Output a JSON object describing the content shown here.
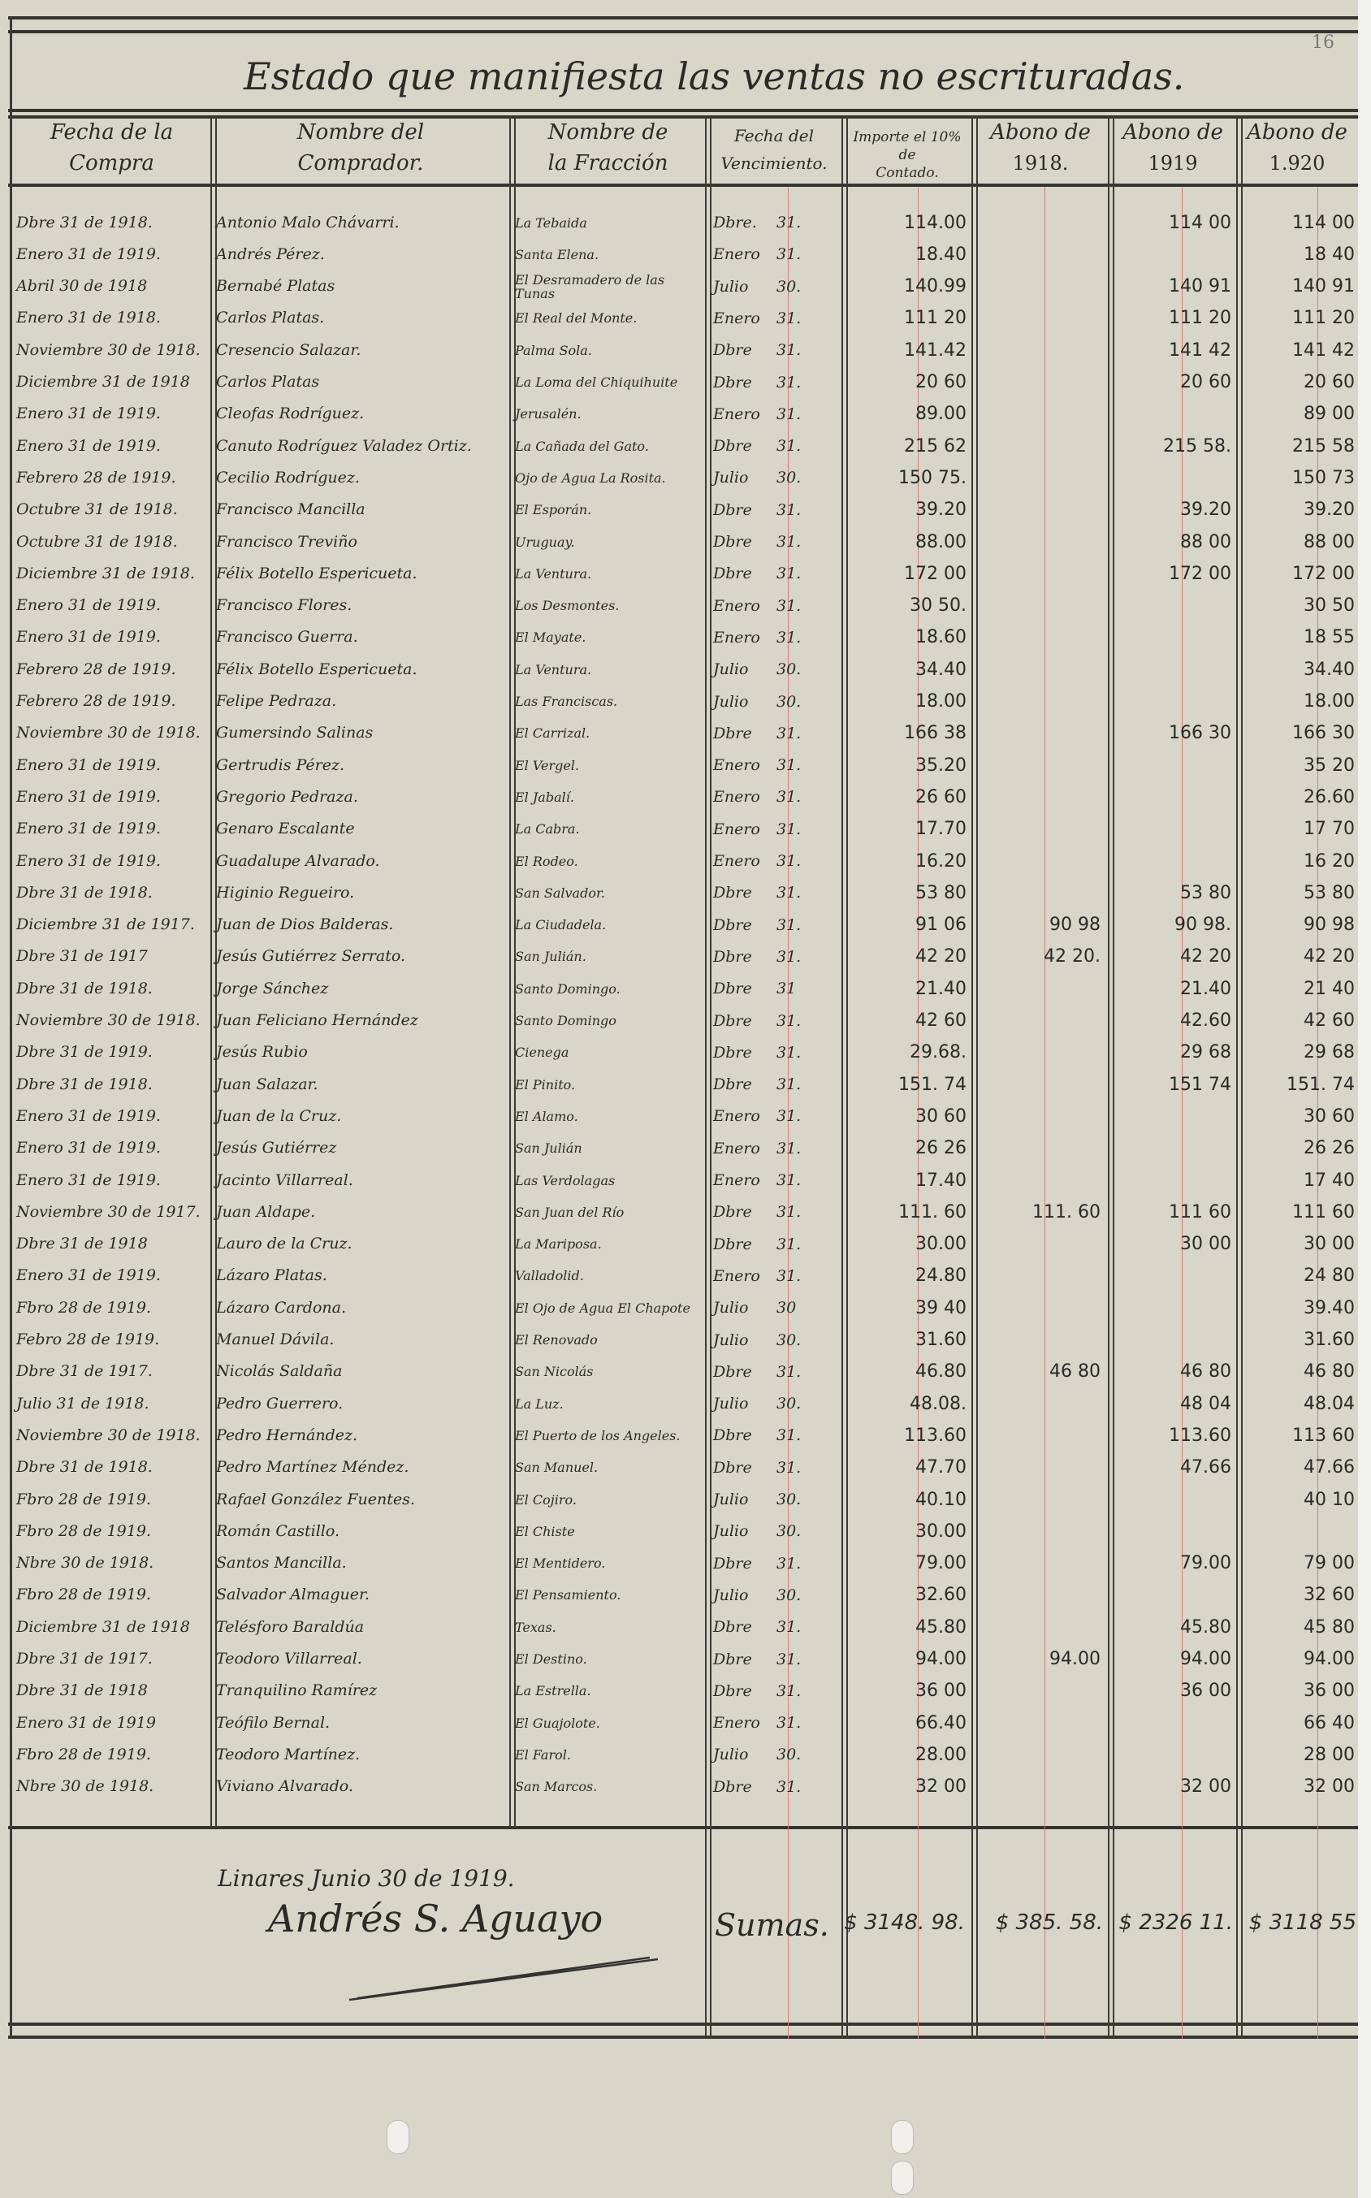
{
  "title": "Estado que manifiesta las ventas no escrituradas.",
  "page_number": "16",
  "headers": {
    "fecha_compra": [
      "Fecha de la",
      "Compra"
    ],
    "comprador": [
      "Nombre del",
      "Comprador."
    ],
    "fraccion": [
      "Nombre de",
      "la Fracción"
    ],
    "vencimiento": [
      "Fecha del",
      "Vencimiento."
    ],
    "importe": [
      "Importe el 10%",
      "de",
      "Contado."
    ],
    "abono_1918": [
      "Abono de",
      "1918."
    ],
    "abono_1919": [
      "Abono de",
      "1919"
    ],
    "abono_1920": [
      "Abono de",
      "1.920"
    ]
  },
  "rows": [
    [
      "Dbre 31 de 1918.",
      "Antonio Malo Chávarri.",
      "La Tebaida",
      "Dbre.",
      "31.",
      "114.00",
      "",
      "114 00",
      "114 00"
    ],
    [
      "Enero 31 de 1919.",
      "Andrés Pérez.",
      "Santa Elena.",
      "Enero",
      "31.",
      "18.40",
      "",
      "",
      "18 40"
    ],
    [
      "Abril 30 de 1918",
      "Bernabé Platas",
      "El Desramadero de las Tunas",
      "Julio",
      "30.",
      "140.99",
      "",
      "140 91",
      "140 91"
    ],
    [
      "Enero 31 de 1918.",
      "Carlos Platas.",
      "El Real del Monte.",
      "Enero",
      "31.",
      "111 20",
      "",
      "111 20",
      "111 20"
    ],
    [
      "Noviembre 30 de 1918.",
      "Cresencio Salazar.",
      "Palma Sola.",
      "Dbre",
      "31.",
      "141.42",
      "",
      "141 42",
      "141 42"
    ],
    [
      "Diciembre 31 de 1918",
      "Carlos Platas",
      "La Loma del Chiquihuite",
      "Dbre",
      "31.",
      "20 60",
      "",
      "20 60",
      "20 60"
    ],
    [
      "Enero 31 de 1919.",
      "Cleofas Rodríguez.",
      "Jerusalén.",
      "Enero",
      "31.",
      "89.00",
      "",
      "",
      "89 00"
    ],
    [
      "Enero 31 de 1919.",
      "Canuto Rodríguez Valadez Ortiz.",
      "La Cañada del Gato.",
      "Dbre",
      "31.",
      "215 62",
      "",
      "215 58.",
      "215 58"
    ],
    [
      "Febrero 28 de 1919.",
      "Cecilio Rodríguez.",
      "Ojo de Agua La Rosita.",
      "Julio",
      "30.",
      "150 75.",
      "",
      "",
      "150 73"
    ],
    [
      "Octubre 31 de 1918.",
      "Francisco Mancilla",
      "El Esporán.",
      "Dbre",
      "31.",
      "39.20",
      "",
      "39.20",
      "39.20"
    ],
    [
      "Octubre 31 de 1918.",
      "Francisco Treviño",
      "Uruguay.",
      "Dbre",
      "31.",
      "88.00",
      "",
      "88 00",
      "88 00"
    ],
    [
      "Diciembre 31 de 1918.",
      "Félix Botello Espericueta.",
      "La Ventura.",
      "Dbre",
      "31.",
      "172 00",
      "",
      "172 00",
      "172 00"
    ],
    [
      "Enero 31 de 1919.",
      "Francisco Flores.",
      "Los Desmontes.",
      "Enero",
      "31.",
      "30 50.",
      "",
      "",
      "30 50"
    ],
    [
      "Enero 31 de 1919.",
      "Francisco Guerra.",
      "El Mayate.",
      "Enero",
      "31.",
      "18.60",
      "",
      "",
      "18 55"
    ],
    [
      "Febrero 28 de 1919.",
      "Félix Botello Espericueta.",
      "La Ventura.",
      "Julio",
      "30.",
      "34.40",
      "",
      "",
      "34.40"
    ],
    [
      "Febrero 28 de 1919.",
      "Felipe Pedraza.",
      "Las Franciscas.",
      "Julio",
      "30.",
      "18.00",
      "",
      "",
      "18.00"
    ],
    [
      "Noviembre 30 de 1918.",
      "Gumersindo Salinas",
      "El Carrizal.",
      "Dbre",
      "31.",
      "166 38",
      "",
      "166 30",
      "166 30"
    ],
    [
      "Enero 31 de 1919.",
      "Gertrudis Pérez.",
      "El Vergel.",
      "Enero",
      "31.",
      "35.20",
      "",
      "",
      "35 20"
    ],
    [
      "Enero 31 de 1919.",
      "Gregorio Pedraza.",
      "El Jabalí.",
      "Enero",
      "31.",
      "26 60",
      "",
      "",
      "26.60"
    ],
    [
      "Enero 31 de 1919.",
      "Genaro Escalante",
      "La Cabra.",
      "Enero",
      "31.",
      "17.70",
      "",
      "",
      "17 70"
    ],
    [
      "Enero 31 de 1919.",
      "Guadalupe Alvarado.",
      "El Rodeo.",
      "Enero",
      "31.",
      "16.20",
      "",
      "",
      "16 20"
    ],
    [
      "Dbre 31 de 1918.",
      "Higinio Regueiro.",
      "San Salvador.",
      "Dbre",
      "31.",
      "53 80",
      "",
      "53 80",
      "53 80"
    ],
    [
      "Diciembre 31 de 1917.",
      "Juan de Dios Balderas.",
      "La Ciudadela.",
      "Dbre",
      "31.",
      "91 06",
      "90 98",
      "90 98.",
      "90 98"
    ],
    [
      "Dbre 31 de 1917",
      "Jesús Gutiérrez Serrato.",
      "San Julián.",
      "Dbre",
      "31.",
      "42 20",
      "42 20.",
      "42 20",
      "42 20"
    ],
    [
      "Dbre 31 de 1918.",
      "Jorge Sánchez",
      "Santo Domingo.",
      "Dbre",
      "31",
      "21.40",
      "",
      "21.40",
      "21 40"
    ],
    [
      "Noviembre 30 de 1918.",
      "Juan Feliciano Hernández",
      "Santo Domingo",
      "Dbre",
      "31.",
      "42 60",
      "",
      "42.60",
      "42 60"
    ],
    [
      "Dbre 31 de 1919.",
      "Jesús Rubio",
      "Cienega",
      "Dbre",
      "31.",
      "29.68.",
      "",
      "29 68",
      "29 68"
    ],
    [
      "Dbre 31 de 1918.",
      "Juan Salazar.",
      "El Pinito.",
      "Dbre",
      "31.",
      "151. 74",
      "",
      "151 74",
      "151. 74"
    ],
    [
      "Enero 31 de 1919.",
      "Juan de la Cruz.",
      "El Alamo.",
      "Enero",
      "31.",
      "30 60",
      "",
      "",
      "30 60"
    ],
    [
      "Enero 31 de 1919.",
      "Jesús Gutiérrez",
      "San Julián",
      "Enero",
      "31.",
      "26 26",
      "",
      "",
      "26 26"
    ],
    [
      "Enero 31 de 1919.",
      "Jacinto Villarreal.",
      "Las Verdolagas",
      "Enero",
      "31.",
      "17.40",
      "",
      "",
      "17 40"
    ],
    [
      "Noviembre 30 de 1917.",
      "Juan Aldape.",
      "San Juan del Río",
      "Dbre",
      "31.",
      "111. 60",
      "111. 60",
      "111 60",
      "111 60"
    ],
    [
      "Dbre 31 de 1918",
      "Lauro de la Cruz.",
      "La Mariposa.",
      "Dbre",
      "31.",
      "30.00",
      "",
      "30 00",
      "30 00"
    ],
    [
      "Enero 31 de 1919.",
      "Lázaro Platas.",
      "Valladolid.",
      "Enero",
      "31.",
      "24.80",
      "",
      "",
      "24 80"
    ],
    [
      "Fbro 28 de 1919.",
      "Lázaro Cardona.",
      "El Ojo de Agua El Chapote",
      "Julio",
      "30",
      "39 40",
      "",
      "",
      "39.40"
    ],
    [
      "Febro 28 de 1919.",
      "Manuel Dávila.",
      "El Renovado",
      "Julio",
      "30.",
      "31.60",
      "",
      "",
      "31.60"
    ],
    [
      "Dbre 31 de 1917.",
      "Nicolás Saldaña",
      "San Nicolás",
      "Dbre",
      "31.",
      "46.80",
      "46 80",
      "46 80",
      "46 80"
    ],
    [
      "Julio 31 de 1918.",
      "Pedro Guerrero.",
      "La Luz.",
      "Julio",
      "30.",
      "48.08.",
      "",
      "48 04",
      "48.04"
    ],
    [
      "Noviembre 30 de 1918.",
      "Pedro Hernández.",
      "El Puerto de los Angeles.",
      "Dbre",
      "31.",
      "113.60",
      "",
      "113.60",
      "113 60"
    ],
    [
      "Dbre 31 de 1918.",
      "Pedro Martínez Méndez.",
      "San Manuel.",
      "Dbre",
      "31.",
      "47.70",
      "",
      "47.66",
      "47.66"
    ],
    [
      "Fbro 28 de 1919.",
      "Rafael González Fuentes.",
      "El Cojiro.",
      "Julio",
      "30.",
      "40.10",
      "",
      "",
      "40 10"
    ],
    [
      "Fbro 28 de 1919.",
      "Román Castillo.",
      "El Chiste",
      "Julio",
      "30.",
      "30.00",
      "",
      "",
      ""
    ],
    [
      "Nbre 30 de 1918.",
      "Santos Mancilla.",
      "El Mentidero.",
      "Dbre",
      "31.",
      "79.00",
      "",
      "79.00",
      "79 00"
    ],
    [
      "Fbro 28 de 1919.",
      "Salvador Almaguer.",
      "El Pensamiento.",
      "Julio",
      "30.",
      "32.60",
      "",
      "",
      "32 60"
    ],
    [
      "Diciembre 31 de 1918",
      "Telésforo Baraldúa",
      "Texas.",
      "Dbre",
      "31.",
      "45.80",
      "",
      "45.80",
      "45 80"
    ],
    [
      "Dbre 31 de 1917.",
      "Teodoro Villarreal.",
      "El Destino.",
      "Dbre",
      "31.",
      "94.00",
      "94.00",
      "94.00",
      "94.00"
    ],
    [
      "Dbre 31 de 1918",
      "Tranquilino Ramírez",
      "La Estrella.",
      "Dbre",
      "31.",
      "36 00",
      "",
      "36 00",
      "36 00"
    ],
    [
      "Enero 31 de 1919",
      "Teófilo Bernal.",
      "El Guajolote.",
      "Enero",
      "31.",
      "66.40",
      "",
      "",
      "66 40"
    ],
    [
      "Fbro 28 de 1919.",
      "Teodoro Martínez.",
      "El Farol.",
      "Julio",
      "30.",
      "28.00",
      "",
      "",
      "28 00"
    ],
    [
      "Nbre 30 de 1918.",
      "Viviano Alvarado.",
      "San Marcos.",
      "Dbre",
      "31.",
      "32 00",
      "",
      "32 00",
      "32 00"
    ]
  ],
  "footer": {
    "place_date": "Linares Junio 30 de 1919.",
    "signature": "Andrés S. Aguayo",
    "sumas_label": "Sumas.",
    "total_importe": "$ 3148. 98.",
    "total_1918": "$ 385. 58.",
    "total_1919": "$ 2326 11.",
    "total_1920": "$ 3118 55"
  }
}
